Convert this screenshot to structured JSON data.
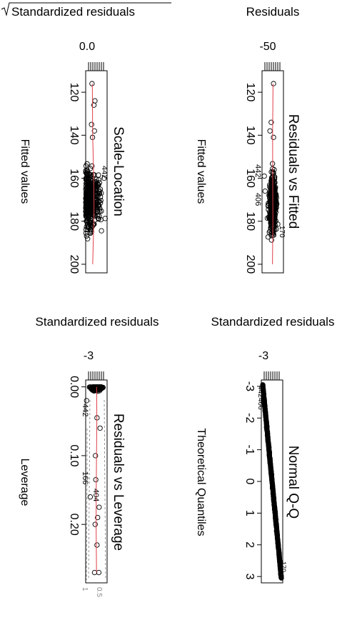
{
  "chart_data": [
    {
      "type": "scatter",
      "title": "Scale-Location",
      "xlabel": "Fitted values",
      "ylabel": "Standardized residuals",
      "x_ticks": [
        "120",
        "140",
        "160",
        "180",
        "200"
      ],
      "y_ticks": [
        "0.0"
      ],
      "xlim": [
        110,
        204
      ],
      "ylim": [
        0,
        2.2
      ],
      "annotations": [
        "442"
      ],
      "smoother_color": "#e0404a"
    },
    {
      "type": "scatter",
      "title": "Residuals vs Fitted",
      "xlabel": "Fitted values",
      "ylabel": "Residuals",
      "x_ticks": [
        "120",
        "140",
        "160",
        "180",
        "200"
      ],
      "y_ticks": [
        "-50"
      ],
      "xlim": [
        110,
        204
      ],
      "ylim": [
        -70,
        70
      ],
      "annotations": [
        "442",
        "406",
        "170"
      ],
      "smoother_color": "#e0404a"
    },
    {
      "type": "scatter",
      "title": "Residuals vs Leverage",
      "xlabel": "Leverage",
      "ylabel": "Standardized residuals",
      "x_ticks": [
        "0.00",
        "0.10",
        "0.20"
      ],
      "y_ticks": [
        "-3"
      ],
      "xlim": [
        -0.01,
        0.285
      ],
      "ylim": [
        -3.5,
        3.5
      ],
      "annotations": [
        "442",
        "166",
        "404"
      ],
      "cooks_labels": [
        "0.5",
        "1"
      ],
      "smoother_color": "#e0404a"
    },
    {
      "type": "scatter",
      "title": "Normal Q-Q",
      "xlabel": "Theoretical Quantiles",
      "ylabel": "Standardized residuals",
      "x_ticks": [
        "-3",
        "-2",
        "-1",
        "0",
        "1",
        "2",
        "3"
      ],
      "y_ticks": [
        "-3"
      ],
      "xlim": [
        -3.2,
        3.2
      ],
      "ylim": [
        -3.5,
        3.5
      ],
      "annotations": [
        "442",
        "406",
        "170"
      ]
    }
  ]
}
